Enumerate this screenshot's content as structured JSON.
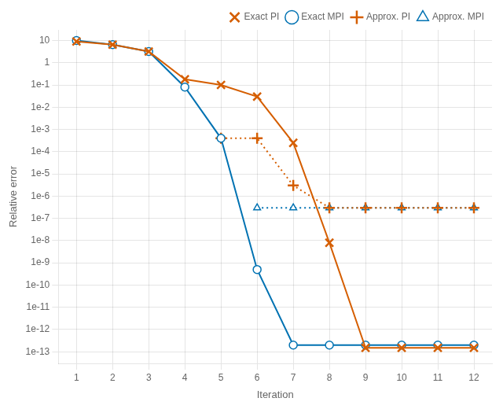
{
  "chart_data": {
    "type": "line",
    "xlabel": "Iteration",
    "ylabel": "Relative error",
    "series": [
      {
        "name": "Exact PI",
        "color": "#d55e00",
        "marker": "x",
        "line_style": "solid",
        "x": [
          1,
          2,
          3,
          4,
          5,
          6,
          7,
          8,
          9,
          10,
          11,
          12
        ],
        "values": [
          9.0,
          6.5,
          3.2,
          0.18,
          0.1,
          0.03,
          0.00025,
          8e-09,
          1.5e-13,
          1.5e-13,
          1.5e-13,
          1.5e-13
        ]
      },
      {
        "name": "Exact MPI",
        "color": "#0072b2",
        "marker": "circle",
        "line_style": "solid",
        "x": [
          1,
          2,
          3,
          4,
          5,
          6,
          7,
          8,
          9,
          10,
          11,
          12
        ],
        "values": [
          10.0,
          6.5,
          3.2,
          0.08,
          0.0004,
          5e-10,
          2e-13,
          2e-13,
          2e-13,
          2e-13,
          2e-13,
          2e-13
        ]
      },
      {
        "name": "Approx. PI",
        "color": "#d55e00",
        "marker": "plus",
        "line_style": "dotted",
        "x": [
          5,
          6,
          7,
          8,
          9,
          10,
          11,
          12
        ],
        "values": [
          0.0004,
          0.0004,
          3e-06,
          3e-07,
          3e-07,
          3e-07,
          3e-07,
          3e-07
        ]
      },
      {
        "name": "Approx. MPI",
        "color": "#0072b2",
        "marker": "triangle",
        "line_style": "dotted",
        "x": [
          6,
          7,
          8,
          9,
          10,
          11,
          12
        ],
        "values": [
          3e-07,
          3e-07,
          3e-07,
          3e-07,
          3e-07,
          3e-07,
          3e-07
        ]
      }
    ],
    "xlim": [
      0.5,
      12.5
    ],
    "xticks": [
      1,
      2,
      3,
      4,
      5,
      6,
      7,
      8,
      9,
      10,
      11,
      12
    ],
    "ylim": [
      3e-14,
      30
    ],
    "yticks": [
      {
        "value": 1e-13,
        "label": "1e-13"
      },
      {
        "value": 1e-12,
        "label": "1e-12"
      },
      {
        "value": 1e-11,
        "label": "1e-11"
      },
      {
        "value": 1e-10,
        "label": "1e-10"
      },
      {
        "value": 1e-09,
        "label": "1e-9"
      },
      {
        "value": 1e-08,
        "label": "1e-8"
      },
      {
        "value": 1e-07,
        "label": "1e-7"
      },
      {
        "value": 1e-06,
        "label": "1e-6"
      },
      {
        "value": 1e-05,
        "label": "1e-5"
      },
      {
        "value": 0.0001,
        "label": "1e-4"
      },
      {
        "value": 0.001,
        "label": "1e-3"
      },
      {
        "value": 0.01,
        "label": "1e-2"
      },
      {
        "value": 0.1,
        "label": "1e-1"
      },
      {
        "value": 1,
        "label": "1"
      },
      {
        "value": 10,
        "label": "10"
      }
    ],
    "log": "y",
    "grid": true,
    "legend": "upper right"
  }
}
